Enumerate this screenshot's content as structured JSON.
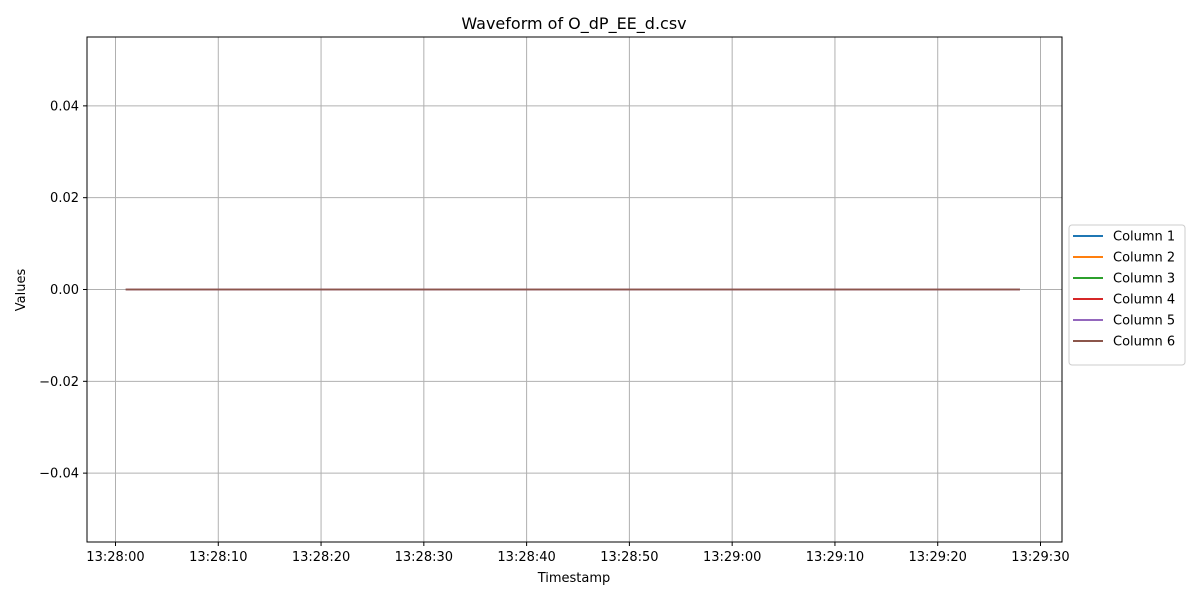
{
  "chart_data": {
    "type": "line",
    "title": "Waveform of O_dP_EE_d.csv",
    "xlabel": "Timestamp",
    "ylabel": "Values",
    "x_ticks": [
      "13:28:00",
      "13:28:10",
      "13:28:20",
      "13:28:30",
      "13:28:40",
      "13:28:50",
      "13:29:00",
      "13:29:10",
      "13:29:20",
      "13:29:30"
    ],
    "y_ticks": [
      "−0.04",
      "−0.02",
      "0.00",
      "0.02",
      "0.04"
    ],
    "y_tick_values": [
      -0.04,
      -0.02,
      0.0,
      0.02,
      0.04
    ],
    "ylim": [
      -0.055,
      0.055
    ],
    "xlim": [
      "13:28:00",
      "13:29:31"
    ],
    "x": [
      "13:28:01",
      "13:29:28"
    ],
    "series": [
      {
        "name": "Column 1",
        "color": "#1f77b4",
        "values": [
          0.0,
          0.0
        ]
      },
      {
        "name": "Column 2",
        "color": "#ff7f0e",
        "values": [
          0.0,
          0.0
        ]
      },
      {
        "name": "Column 3",
        "color": "#2ca02c",
        "values": [
          0.0,
          0.0
        ]
      },
      {
        "name": "Column 4",
        "color": "#d62728",
        "values": [
          0.0,
          0.0
        ]
      },
      {
        "name": "Column 5",
        "color": "#9467bd",
        "values": [
          0.0,
          0.0
        ]
      },
      {
        "name": "Column 6",
        "color": "#8c564b",
        "values": [
          0.0,
          0.0
        ]
      }
    ],
    "grid": true,
    "legend_position": "right"
  }
}
